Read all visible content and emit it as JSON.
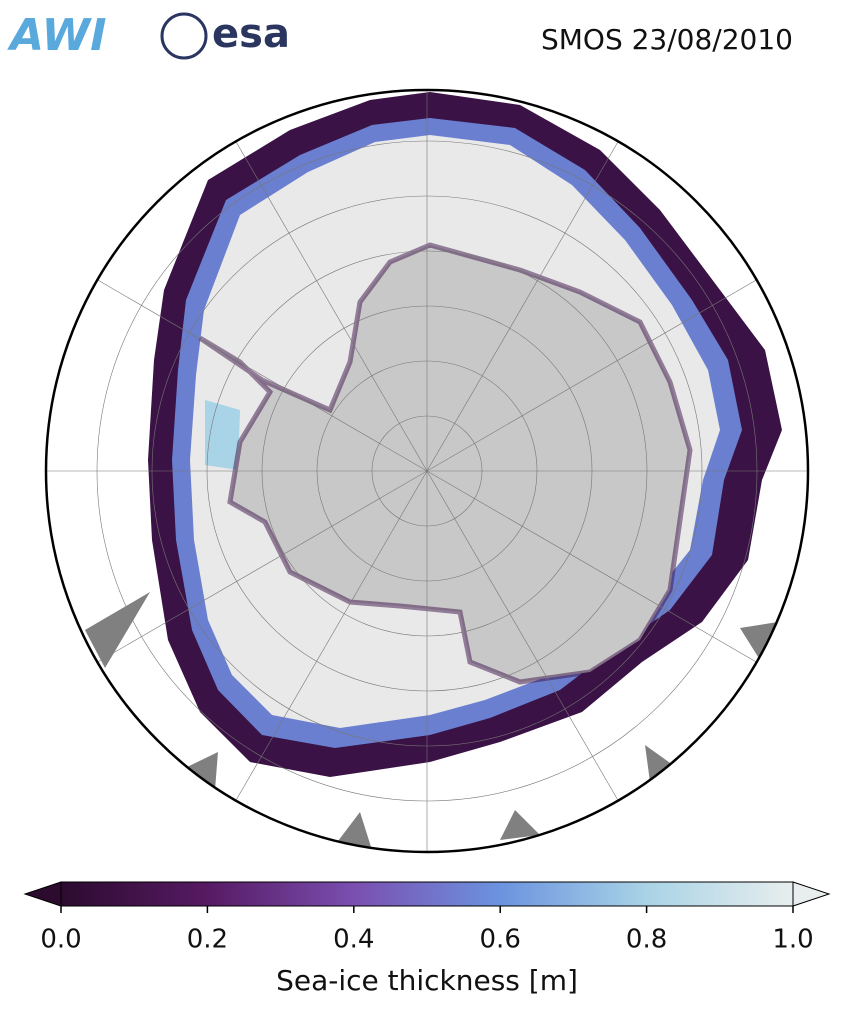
{
  "logos": [
    "AWI",
    "esa"
  ],
  "title": "SMOS 23/08/2010",
  "colorbar": {
    "label": "Sea-ice thickness [m]",
    "lim": [
      0,
      1
    ],
    "ticks": [
      {
        "value": 0,
        "label": "0.0"
      },
      0.2,
      0.4,
      0.6,
      0.8,
      {
        "value": 1,
        "label": "1.0"
      }
    ],
    "colors": [
      "#2c0b2f",
      "#561a63",
      "#7a4fb0",
      "#6b93df",
      "#a9d3e6",
      "#e8eeee"
    ]
  }
}
